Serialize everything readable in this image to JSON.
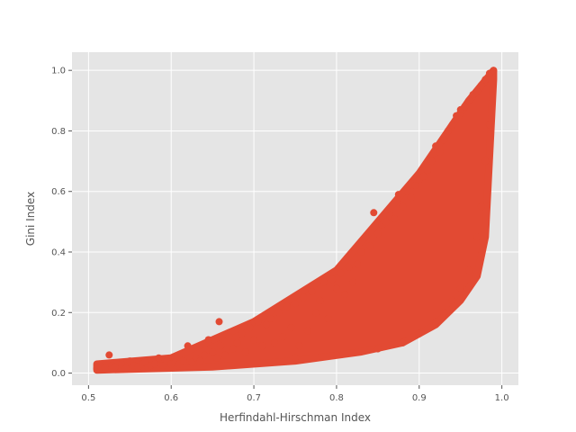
{
  "chart_data": {
    "type": "scatter",
    "title": "",
    "xlabel": "Herfindahl-Hirschman Index",
    "ylabel": "Gini Index",
    "xlim": [
      0.48,
      1.02
    ],
    "ylim": [
      -0.04,
      1.06
    ],
    "x_ticks": [
      "0.5",
      "0.6",
      "0.7",
      "0.8",
      "0.9",
      "1.0"
    ],
    "y_ticks": [
      "0.0",
      "0.2",
      "0.4",
      "0.6",
      "0.8",
      "1.0"
    ],
    "grid": true,
    "legend": "none",
    "marker_color": "#E24A33",
    "background_color": "#E5E5E5",
    "grid_color": "#FFFFFF",
    "series": [
      {
        "points": [
          [
            0.51,
            0.015
          ],
          [
            0.515,
            0.02
          ],
          [
            0.52,
            0.018
          ],
          [
            0.525,
            0.06
          ],
          [
            0.528,
            0.025
          ],
          [
            0.532,
            0.02
          ],
          [
            0.54,
            0.03
          ],
          [
            0.545,
            0.015
          ],
          [
            0.55,
            0.04
          ],
          [
            0.555,
            0.025
          ],
          [
            0.56,
            0.02
          ],
          [
            0.565,
            0.03
          ],
          [
            0.568,
            0.035
          ],
          [
            0.572,
            0.02
          ],
          [
            0.575,
            0.025
          ],
          [
            0.58,
            0.03
          ],
          [
            0.585,
            0.05
          ],
          [
            0.59,
            0.025
          ],
          [
            0.595,
            0.04
          ],
          [
            0.6,
            0.03
          ],
          [
            0.605,
            0.035
          ],
          [
            0.61,
            0.03
          ],
          [
            0.615,
            0.04
          ],
          [
            0.62,
            0.09
          ],
          [
            0.625,
            0.035
          ],
          [
            0.63,
            0.05
          ],
          [
            0.635,
            0.04
          ],
          [
            0.64,
            0.06
          ],
          [
            0.645,
            0.11
          ],
          [
            0.65,
            0.07
          ],
          [
            0.655,
            0.05
          ],
          [
            0.658,
            0.17
          ],
          [
            0.66,
            0.09
          ],
          [
            0.665,
            0.06
          ],
          [
            0.67,
            0.12
          ],
          [
            0.675,
            0.08
          ],
          [
            0.68,
            0.1
          ],
          [
            0.685,
            0.13
          ],
          [
            0.69,
            0.07
          ],
          [
            0.695,
            0.15
          ],
          [
            0.7,
            0.11
          ],
          [
            0.705,
            0.17
          ],
          [
            0.71,
            0.09
          ],
          [
            0.715,
            0.16
          ],
          [
            0.72,
            0.18
          ],
          [
            0.725,
            0.1
          ],
          [
            0.73,
            0.2
          ],
          [
            0.735,
            0.12
          ],
          [
            0.74,
            0.22
          ],
          [
            0.745,
            0.15
          ],
          [
            0.75,
            0.23
          ],
          [
            0.755,
            0.09
          ],
          [
            0.76,
            0.25
          ],
          [
            0.765,
            0.14
          ],
          [
            0.77,
            0.27
          ],
          [
            0.775,
            0.2
          ],
          [
            0.78,
            0.24
          ],
          [
            0.785,
            0.3
          ],
          [
            0.79,
            0.18
          ],
          [
            0.795,
            0.31
          ],
          [
            0.8,
            0.28
          ],
          [
            0.805,
            0.33
          ],
          [
            0.81,
            0.26
          ],
          [
            0.815,
            0.35
          ],
          [
            0.82,
            0.3
          ],
          [
            0.825,
            0.36
          ],
          [
            0.83,
            0.4
          ],
          [
            0.835,
            0.45
          ],
          [
            0.84,
            0.42
          ],
          [
            0.845,
            0.53
          ],
          [
            0.85,
            0.46
          ],
          [
            0.855,
            0.49
          ],
          [
            0.86,
            0.5
          ],
          [
            0.865,
            0.52
          ],
          [
            0.87,
            0.51
          ],
          [
            0.875,
            0.59
          ],
          [
            0.88,
            0.55
          ],
          [
            0.885,
            0.6
          ],
          [
            0.89,
            0.58
          ],
          [
            0.895,
            0.62
          ],
          [
            0.9,
            0.64
          ],
          [
            0.905,
            0.65
          ],
          [
            0.91,
            0.67
          ],
          [
            0.915,
            0.7
          ],
          [
            0.92,
            0.75
          ],
          [
            0.925,
            0.73
          ],
          [
            0.93,
            0.77
          ],
          [
            0.935,
            0.8
          ],
          [
            0.94,
            0.82
          ],
          [
            0.945,
            0.85
          ],
          [
            0.95,
            0.87
          ],
          [
            0.955,
            0.88
          ],
          [
            0.96,
            0.9
          ],
          [
            0.965,
            0.92
          ],
          [
            0.97,
            0.93
          ],
          [
            0.975,
            0.95
          ],
          [
            0.98,
            0.97
          ],
          [
            0.985,
            0.99
          ],
          [
            0.99,
            1.0
          ],
          [
            0.75,
            0.05
          ],
          [
            0.8,
            0.06
          ],
          [
            0.85,
            0.08
          ],
          [
            0.88,
            0.1
          ],
          [
            0.9,
            0.13
          ],
          [
            0.92,
            0.17
          ],
          [
            0.93,
            0.2
          ],
          [
            0.94,
            0.24
          ],
          [
            0.95,
            0.28
          ],
          [
            0.96,
            0.34
          ],
          [
            0.97,
            0.45
          ],
          [
            0.975,
            0.55
          ],
          [
            0.98,
            0.7
          ],
          [
            0.985,
            0.82
          ]
        ]
      }
    ]
  }
}
